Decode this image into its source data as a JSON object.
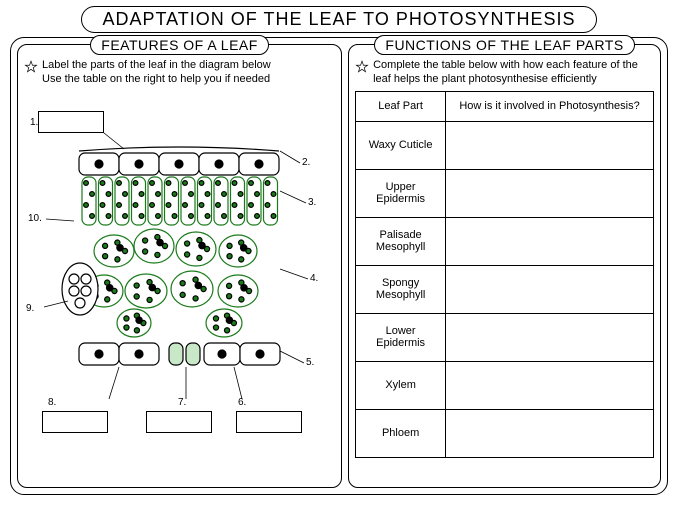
{
  "title": "ADAPTATION OF THE LEAF TO PHOTOSYNTHESIS",
  "left": {
    "heading": "FEATURES OF A LEAF",
    "instruction": "Label the parts of the leaf in the diagram below\nUse the table on the right to help you if needed",
    "label_numbers": [
      "1.",
      "2.",
      "3.",
      "4.",
      "5.",
      "6.",
      "7.",
      "8.",
      "9.",
      "10."
    ],
    "diagram": {
      "colors": {
        "outline": "#000000",
        "chloroplast": "#1a7a1a",
        "chloroplast_fill": "#2a9a2a",
        "nucleus": "#000000",
        "cell_fill": "#ffffff"
      }
    }
  },
  "right": {
    "heading": "FUNCTIONS OF THE LEAF PARTS",
    "instruction": "Complete the table below with how each feature of the leaf helps the plant photosynthesise efficiently",
    "table": {
      "columns": [
        "Leaf Part",
        "How is it involved in Photosynthesis?"
      ],
      "rows": [
        [
          "Waxy Cuticle",
          ""
        ],
        [
          "Upper Epidermis",
          ""
        ],
        [
          "Palisade Mesophyll",
          ""
        ],
        [
          "Spongy Mesophyll",
          ""
        ],
        [
          "Lower Epidermis",
          ""
        ],
        [
          "Xylem",
          ""
        ],
        [
          "Phloem",
          ""
        ]
      ]
    }
  }
}
